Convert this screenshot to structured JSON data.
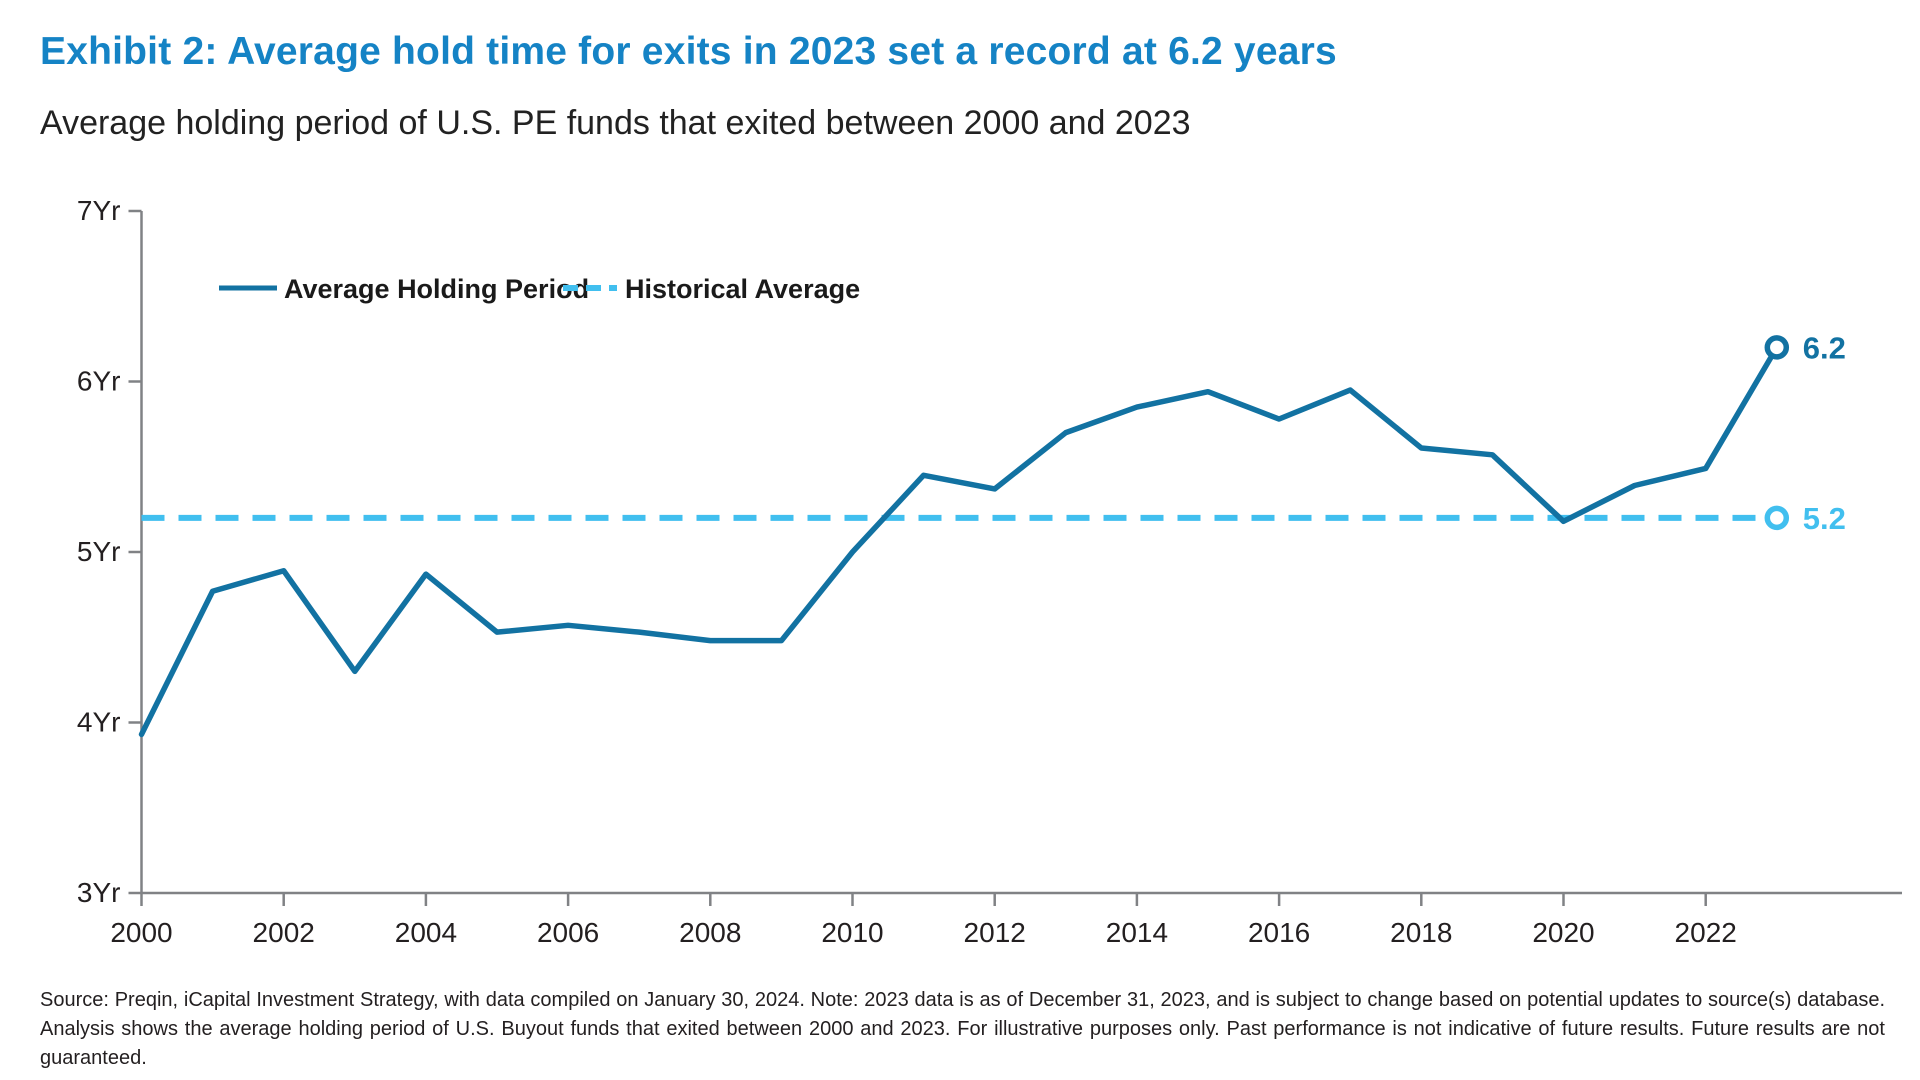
{
  "header": {
    "title": "Exhibit 2: Average hold time for exits in 2023 set a record at 6.2 years",
    "subtitle": "Average holding period of U.S. PE funds that exited between 2000 and 2023"
  },
  "footer": {
    "source_text": "Source: Preqin, iCapital Investment Strategy, with data compiled on January 30, 2024. Note: 2023 data is as of December 31, 2023, and is subject to change based on potential updates to source(s) database. Analysis shows the average holding period of U.S. Buyout funds that exited between 2000 and 2023. For illustrative purposes only. Past performance is not indicative of future results. Future results are not guaranteed."
  },
  "colors": {
    "title_blue": "#1583C5",
    "series_line": "#1272A2",
    "historical_avg": "#41BFEF",
    "axis_gray": "#808285",
    "tick_text": "#231F20"
  },
  "chart_data": {
    "type": "line",
    "title": "Average holding period of U.S. PE funds that exited between 2000 and 2023",
    "xlabel": "",
    "ylabel": "Years",
    "ylim": [
      3,
      7
    ],
    "xlim": [
      2000,
      2023
    ],
    "grid": false,
    "legend_position": "top-left-inside",
    "x": [
      2000,
      2001,
      2002,
      2003,
      2004,
      2005,
      2006,
      2007,
      2008,
      2009,
      2010,
      2011,
      2012,
      2013,
      2014,
      2015,
      2016,
      2017,
      2018,
      2019,
      2020,
      2021,
      2022,
      2023
    ],
    "series": [
      {
        "name": "Average Holding Period",
        "values": [
          3.93,
          4.77,
          4.89,
          4.3,
          4.87,
          4.53,
          4.57,
          4.53,
          4.48,
          4.48,
          5.0,
          5.45,
          5.37,
          5.7,
          5.85,
          5.94,
          5.78,
          5.95,
          5.61,
          5.57,
          5.18,
          5.39,
          5.49,
          6.2
        ]
      }
    ],
    "reference_line": {
      "name": "Historical Average",
      "value": 5.2
    },
    "y_ticks": [
      {
        "value": 7,
        "label": "7Yr"
      },
      {
        "value": 6,
        "label": "6Yr"
      },
      {
        "value": 5,
        "label": "5Yr"
      },
      {
        "value": 4,
        "label": "4Yr"
      },
      {
        "value": 3,
        "label": "3Yr"
      }
    ],
    "x_ticks": [
      {
        "value": 2000,
        "label": "2000"
      },
      {
        "value": 2002,
        "label": "2002"
      },
      {
        "value": 2004,
        "label": "2004"
      },
      {
        "value": 2006,
        "label": "2006"
      },
      {
        "value": 2008,
        "label": "2008"
      },
      {
        "value": 2010,
        "label": "2010"
      },
      {
        "value": 2012,
        "label": "2012"
      },
      {
        "value": 2014,
        "label": "2014"
      },
      {
        "value": 2016,
        "label": "2016"
      },
      {
        "value": 2018,
        "label": "2018"
      },
      {
        "value": 2020,
        "label": "2020"
      },
      {
        "value": 2022,
        "label": "2022"
      }
    ],
    "end_labels": [
      {
        "text": "6.2",
        "value": 6.2,
        "color": "#1272A2"
      },
      {
        "text": "5.2",
        "value": 5.2,
        "color": "#41BFEF"
      }
    ],
    "legend": [
      {
        "label": "Average Holding Period",
        "style": "solid",
        "color": "#1272A2"
      },
      {
        "label": "Historical Average",
        "style": "dashed",
        "color": "#41BFEF"
      }
    ]
  }
}
